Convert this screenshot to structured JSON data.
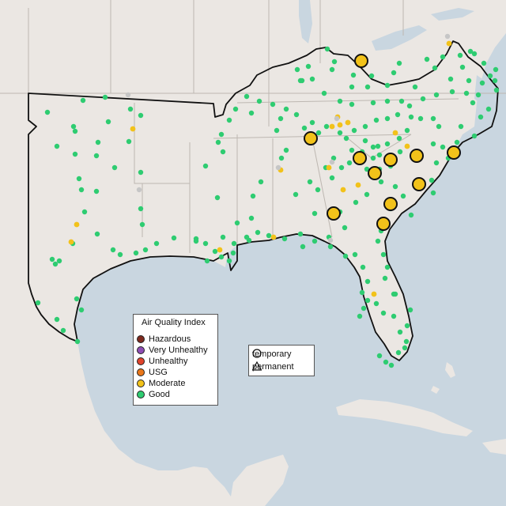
{
  "map": {
    "colors": {
      "land": "#ebe7e3",
      "water": "#c9d6e0",
      "state_border": "#bdb7b1",
      "region_outline": "#111111"
    }
  },
  "legend": {
    "title": "Air Quality Index",
    "items": [
      {
        "label": "Hazardous",
        "color": "#7e2a1f"
      },
      {
        "label": "Very Unhealthy",
        "color": "#8e4eb5"
      },
      {
        "label": "Unhealthy",
        "color": "#e0442c"
      },
      {
        "label": "USG",
        "color": "#e9771a"
      },
      {
        "label": "Moderate",
        "color": "#f2c21a"
      },
      {
        "label": "Good",
        "color": "#2ecc71"
      }
    ]
  },
  "shape_legend": {
    "items": [
      {
        "label": "temporary",
        "icon": "circle-outline-icon"
      },
      {
        "label": "permanent",
        "icon": "triangle-outline-icon"
      }
    ]
  },
  "monitors": {
    "large_moderate_count": 11,
    "no_data_color": "#c6c6c6"
  }
}
